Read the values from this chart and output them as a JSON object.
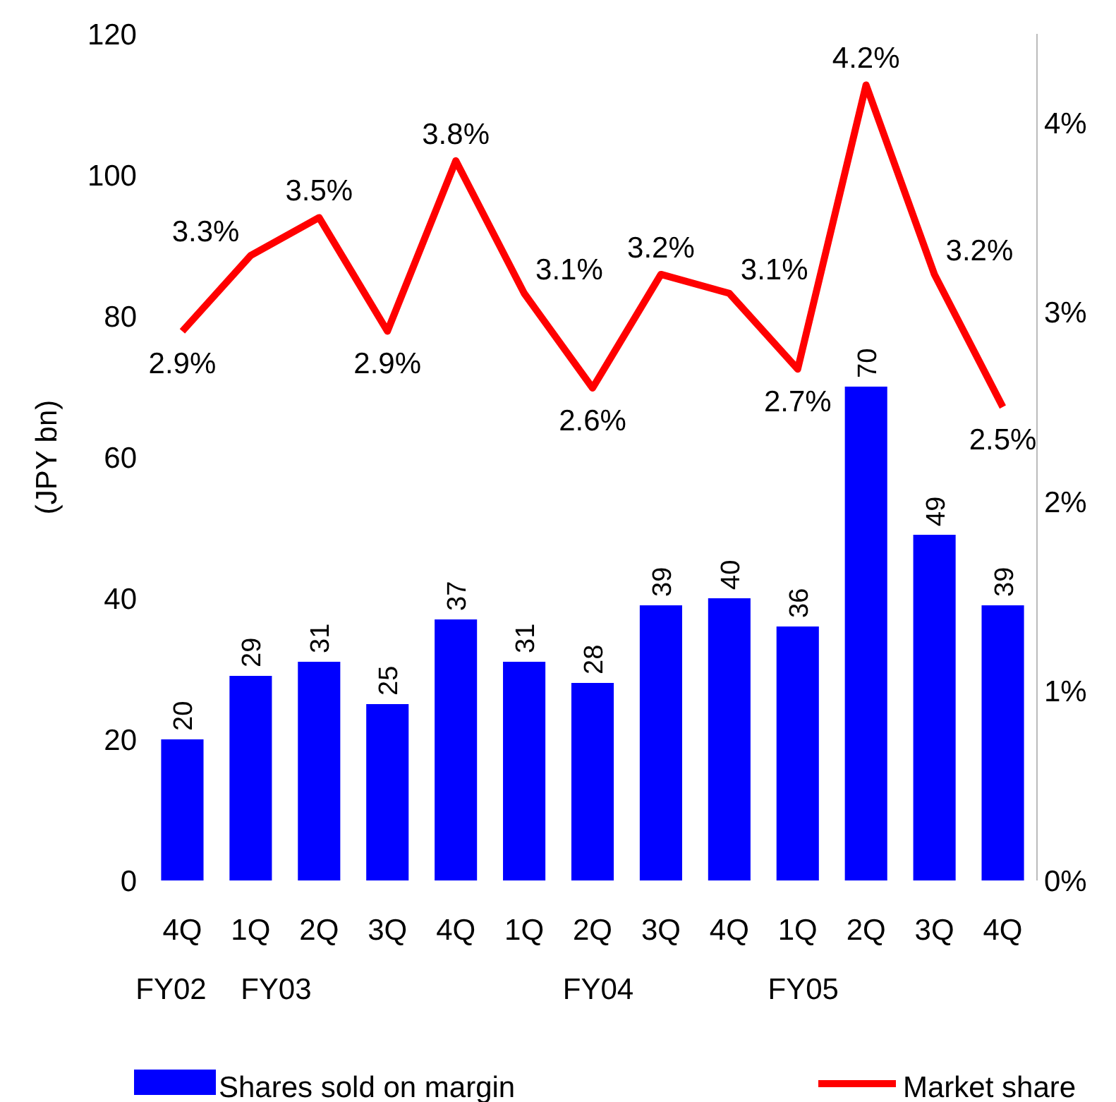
{
  "chart_data": {
    "type": "bar",
    "ylabel": "(JPY bn)",
    "categories": [
      "4Q\nFY02",
      "1Q\nFY03",
      "2Q",
      "3Q",
      "4Q",
      "1Q",
      "2Q\nFY04",
      "3Q",
      "4Q",
      "1Q\nFY05",
      "2Q",
      "3Q",
      "4Q"
    ],
    "series": [
      {
        "name": "Shares sold on margin",
        "color": "#0000ff",
        "values": [
          20,
          29,
          31,
          25,
          37,
          31,
          28,
          39,
          40,
          36,
          70,
          49,
          39
        ],
        "value_labels": [
          "20",
          "29",
          "31",
          "25",
          "37",
          "31",
          "28",
          "39",
          "40",
          "36",
          "70",
          "49",
          "39"
        ]
      },
      {
        "name": "Market share",
        "type": "line",
        "axis": "y2",
        "color": "#ff0000",
        "values": [
          2.9,
          3.3,
          3.5,
          2.9,
          3.8,
          3.1,
          2.6,
          3.2,
          3.1,
          2.7,
          4.2,
          3.2,
          2.5
        ],
        "value_labels": [
          "2.9%",
          "3.3%",
          "3.5%",
          "2.9%",
          "3.8%",
          "3.1%",
          "2.6%",
          "3.2%",
          "3.1%",
          "2.7%",
          "4.2%",
          "3.2%",
          "2.5%"
        ]
      }
    ],
    "ylim": [
      0,
      120
    ],
    "yticks": [
      0,
      20,
      40,
      60,
      80,
      100,
      120
    ],
    "y2lim": [
      0,
      4.47
    ],
    "y2ticks": [
      {
        "value": 0,
        "label": "0%"
      },
      {
        "value": 1,
        "label": "1%"
      },
      {
        "value": 2,
        "label": "2%"
      },
      {
        "value": 3,
        "label": "3%"
      },
      {
        "value": 4,
        "label": "4%"
      }
    ],
    "legend": "bottom",
    "grid": false,
    "marker": "none",
    "line_style": "solid"
  }
}
